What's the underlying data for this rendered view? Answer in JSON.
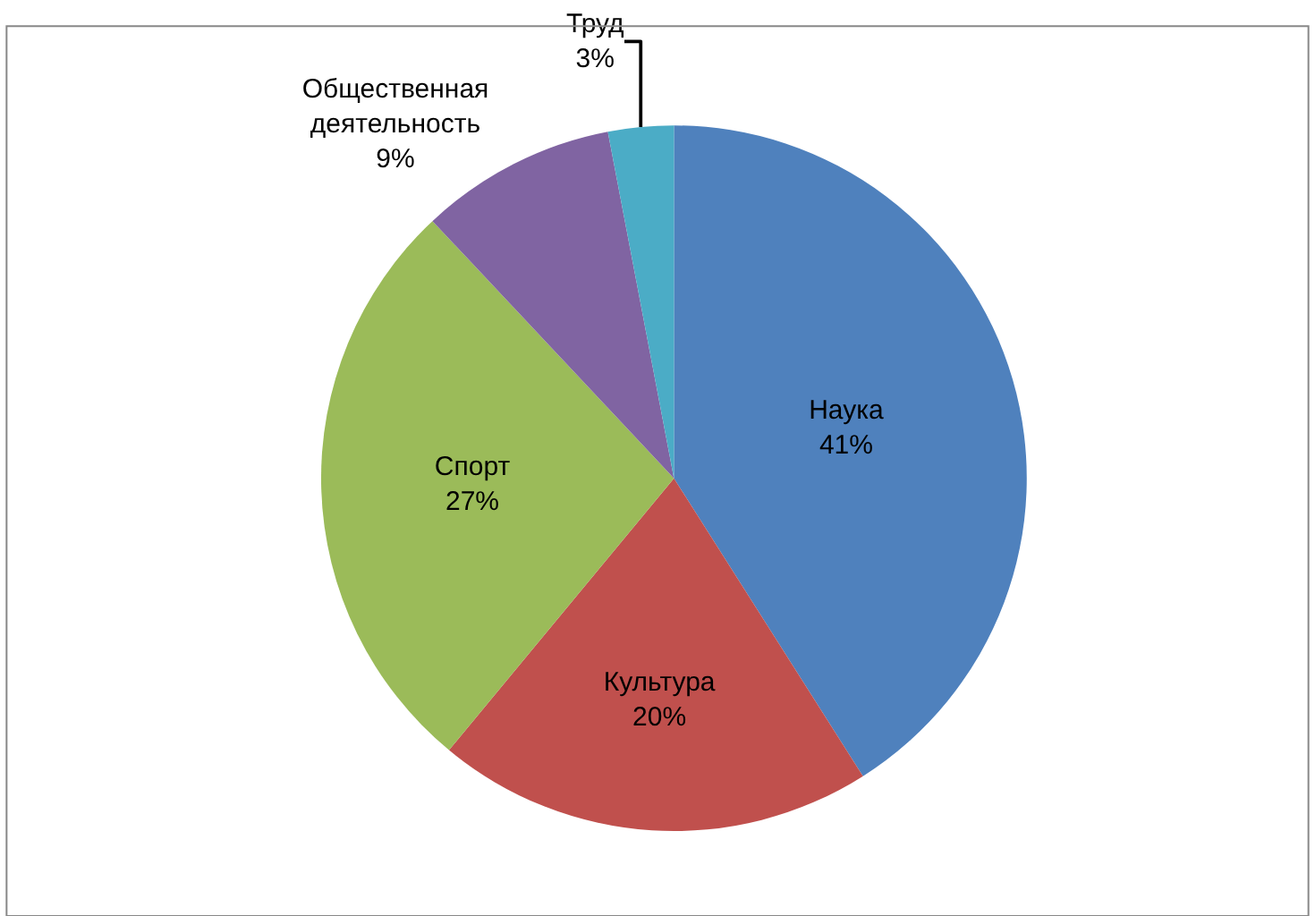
{
  "chart_data": {
    "type": "pie",
    "categories": [
      "Наука",
      "Культура",
      "Спорт",
      "Общественная деятельность",
      "Труд"
    ],
    "values": [
      41,
      20,
      27,
      9,
      3
    ],
    "value_labels": [
      "41%",
      "20%",
      "27%",
      "9%",
      "3%"
    ],
    "colors": [
      "#4f81bd",
      "#c0504d",
      "#9bbb59",
      "#8064a2",
      "#4bacc6"
    ],
    "legend": false
  }
}
